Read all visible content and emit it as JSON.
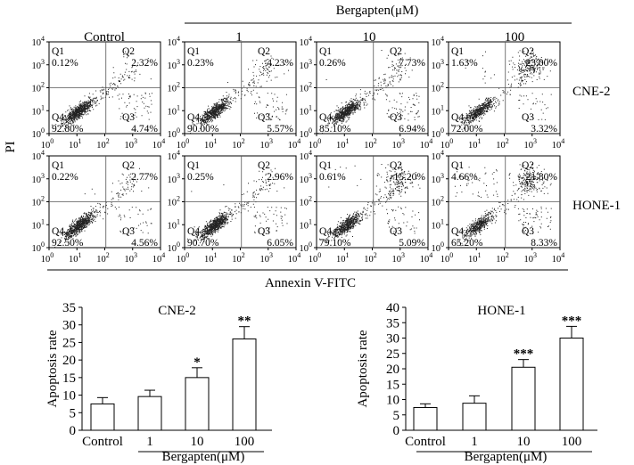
{
  "header": {
    "control_label": "Control",
    "group_label": "Bergapten(μM)",
    "dose_labels": [
      "1",
      "10",
      "100"
    ]
  },
  "flow": {
    "y_axis_label": "PI",
    "x_axis_label": "Annexin V-FITC",
    "row_labels": [
      "CNE-2",
      "HONE-1"
    ],
    "tick_exponents": [
      "0",
      "1",
      "2",
      "3",
      "4"
    ],
    "tick_base": "10",
    "quadrant_names": [
      "Q1",
      "Q2",
      "Q3",
      "Q4"
    ],
    "panels": [
      [
        {
          "q1": "0.12%",
          "q2": "2.32%",
          "q3": "4.74%",
          "q4": "92.80%"
        },
        {
          "q1": "0.23%",
          "q2": "4.23%",
          "q3": "5.57%",
          "q4": "90.00%"
        },
        {
          "q1": "0.26%",
          "q2": "7.73%",
          "q3": "6.94%",
          "q4": "85.10%"
        },
        {
          "q1": "1.63%",
          "q2": "23.00%",
          "q3": "3.32%",
          "q4": "72.00%"
        }
      ],
      [
        {
          "q1": "0.22%",
          "q2": "2.77%",
          "q3": "4.56%",
          "q4": "92.50%"
        },
        {
          "q1": "0.25%",
          "q2": "2.96%",
          "q3": "6.05%",
          "q4": "90.70%"
        },
        {
          "q1": "0.61%",
          "q2": "15.20%",
          "q3": "5.09%",
          "q4": "79.10%"
        },
        {
          "q1": "4.66%",
          "q2": "21.80%",
          "q3": "8.33%",
          "q4": "65.20%"
        }
      ]
    ]
  },
  "chart_data": [
    {
      "type": "bar",
      "title": "CNE-2",
      "ylabel": "Apoptosis rate",
      "xlabel": "Bergapten(μM)",
      "categories": [
        "Control",
        "1",
        "10",
        "100"
      ],
      "values": [
        7.5,
        9.6,
        15.0,
        26.0
      ],
      "errors": [
        1.8,
        1.8,
        2.8,
        3.5
      ],
      "significance": [
        "",
        "",
        "*",
        "**"
      ],
      "ylim": [
        0,
        35
      ],
      "yticks": [
        0,
        5,
        10,
        15,
        20,
        25,
        30,
        35
      ]
    },
    {
      "type": "bar",
      "title": "HONE-1",
      "ylabel": "Apoptosis rate",
      "xlabel": "Bergapten(μM)",
      "categories": [
        "Control",
        "1",
        "10",
        "100"
      ],
      "values": [
        7.4,
        8.8,
        20.5,
        30.0
      ],
      "errors": [
        1.2,
        2.4,
        2.5,
        3.8
      ],
      "significance": [
        "",
        "",
        "***",
        "***"
      ],
      "ylim": [
        0,
        40
      ],
      "yticks": [
        0,
        5,
        10,
        15,
        20,
        25,
        30,
        35,
        40
      ]
    }
  ]
}
